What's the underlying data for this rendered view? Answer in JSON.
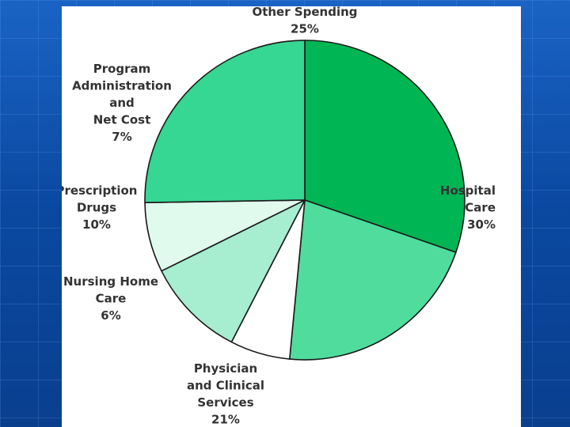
{
  "colors": {
    "background": "#0b4fa8",
    "panel": "#ffffff",
    "outline": "#1a1a1a",
    "label_text": "#333333"
  },
  "chart_data": {
    "type": "pie",
    "title": "",
    "start_angle_deg": 0,
    "direction": "clockwise",
    "slices": [
      {
        "lines": [
          "Hospital",
          "Care"
        ],
        "value": 30,
        "pct_label": "30%",
        "color": "#00b553"
      },
      {
        "lines": [
          "Physician",
          "and Clinical",
          "Services"
        ],
        "value": 21,
        "pct_label": "21%",
        "color": "#4fdc9c"
      },
      {
        "lines": [
          "Nursing Home",
          "Care"
        ],
        "value": 6,
        "pct_label": "6%",
        "color": "#ffffff"
      },
      {
        "lines": [
          "Prescription",
          "Drugs"
        ],
        "value": 10,
        "pct_label": "10%",
        "color": "#a7edd0"
      },
      {
        "lines": [
          "Program",
          "Administration",
          "and",
          "Net Cost"
        ],
        "value": 7,
        "pct_label": "7%",
        "color": "#e1faee"
      },
      {
        "lines": [
          "Other Spending"
        ],
        "value": 25,
        "pct_label": "25%",
        "color": "#36d693"
      }
    ]
  }
}
